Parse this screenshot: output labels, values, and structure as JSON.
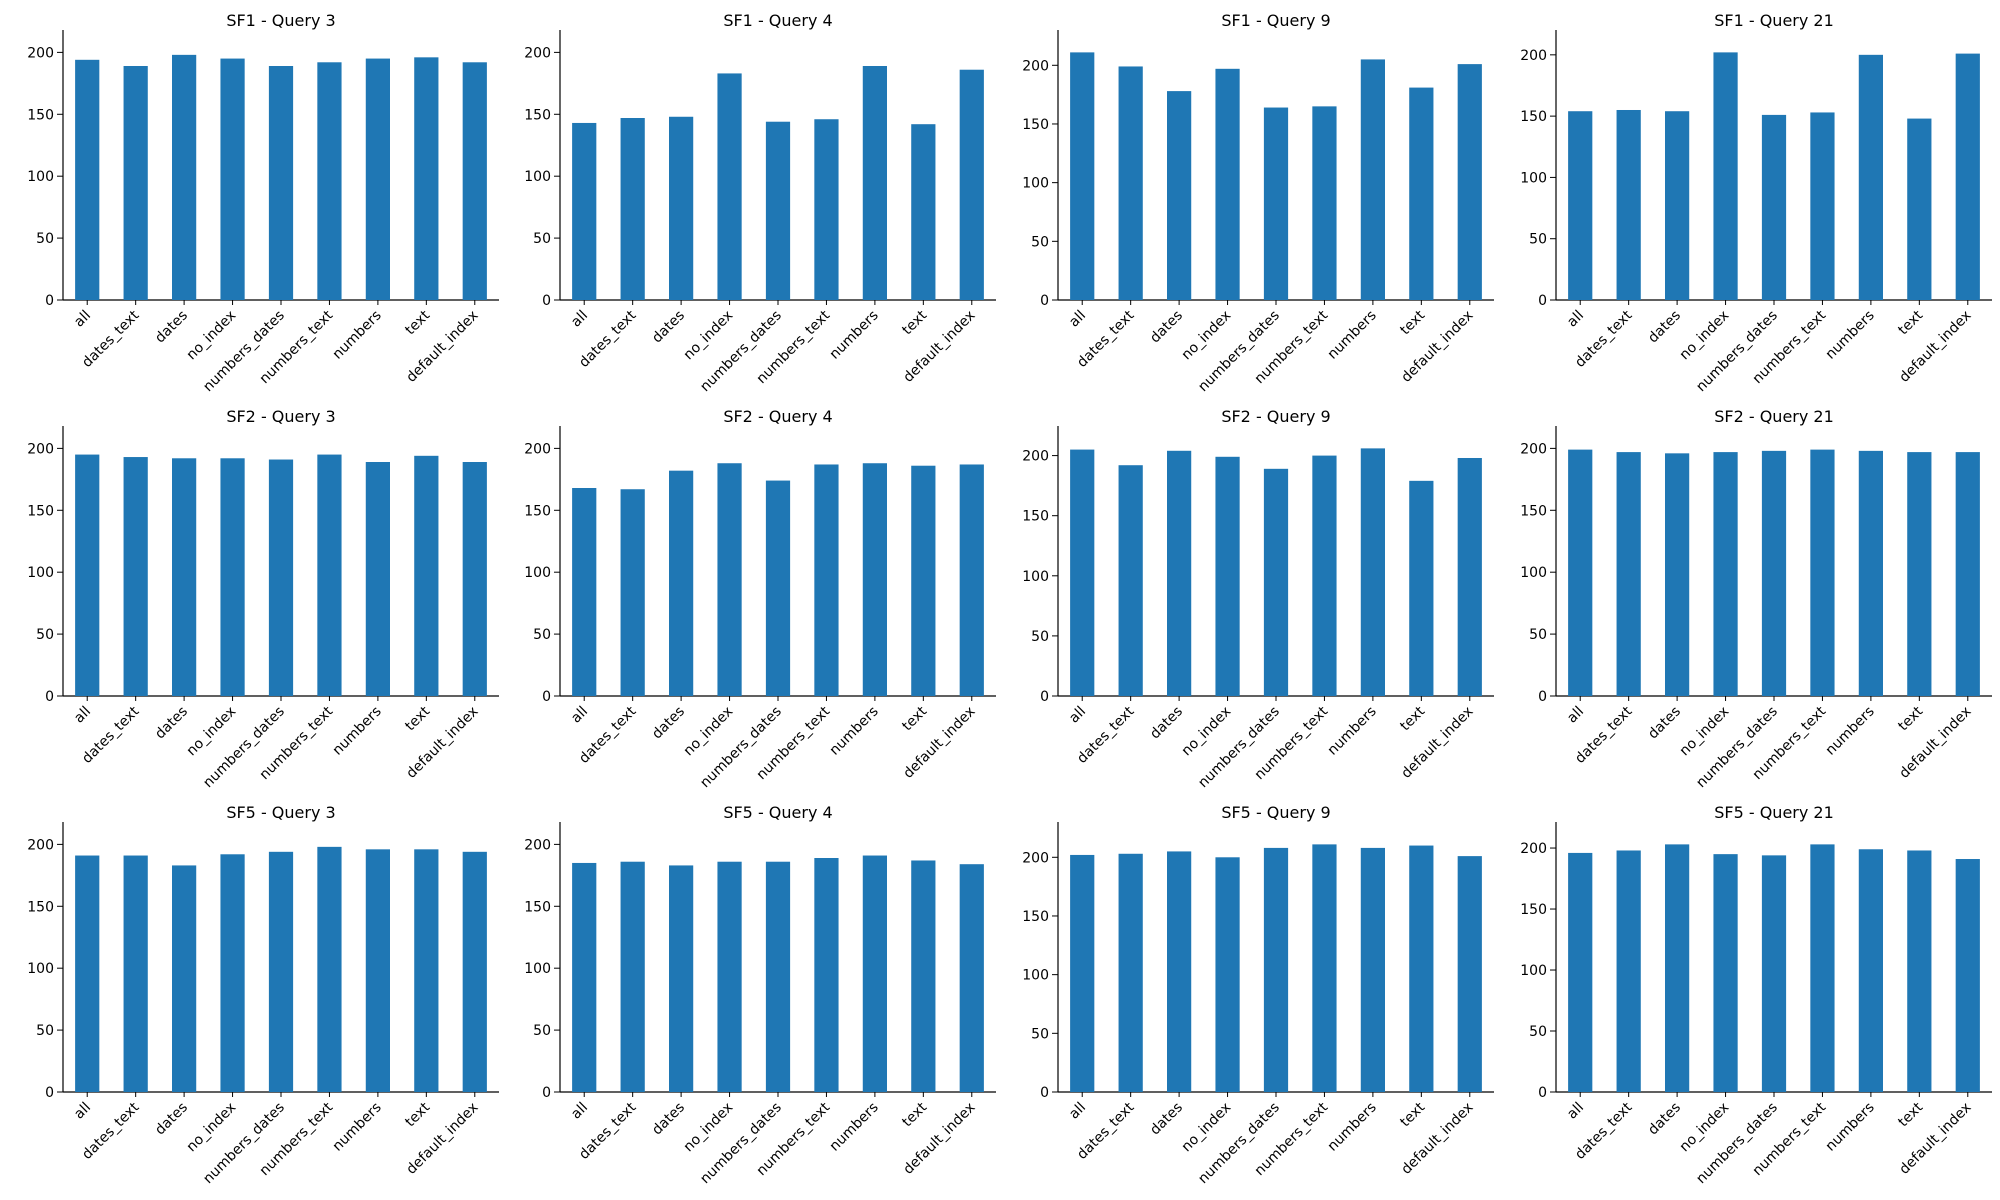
{
  "chart_data": [
    {
      "type": "bar",
      "title": "SF1 - Query 3",
      "categories": [
        "all",
        "dates_text",
        "dates",
        "no_index",
        "numbers_dates",
        "numbers_text",
        "numbers",
        "text",
        "default_index"
      ],
      "values": [
        194,
        189,
        198,
        195,
        189,
        192,
        195,
        196,
        192
      ],
      "ylim": [
        0,
        200
      ],
      "yticks": [
        0,
        50,
        100,
        150,
        200
      ],
      "color": "#1f77b4"
    },
    {
      "type": "bar",
      "title": "SF1 - Query 4",
      "categories": [
        "all",
        "dates_text",
        "dates",
        "no_index",
        "numbers_dates",
        "numbers_text",
        "numbers",
        "text",
        "default_index"
      ],
      "values": [
        143,
        147,
        148,
        183,
        144,
        146,
        189,
        142,
        186
      ],
      "ylim": [
        0,
        200
      ],
      "yticks": [
        0,
        50,
        100,
        150,
        200
      ],
      "color": "#1f77b4"
    },
    {
      "type": "bar",
      "title": "SF1 - Query 9",
      "categories": [
        "all",
        "dates_text",
        "dates",
        "no_index",
        "numbers_dates",
        "numbers_text",
        "numbers",
        "text",
        "default_index"
      ],
      "values": [
        211,
        199,
        178,
        197,
        164,
        165,
        205,
        181,
        201
      ],
      "ylim": [
        0,
        200
      ],
      "yticks": [
        0,
        50,
        100,
        150,
        200
      ],
      "color": "#1f77b4"
    },
    {
      "type": "bar",
      "title": "SF1 - Query 21",
      "categories": [
        "all",
        "dates_text",
        "dates",
        "no_index",
        "numbers_dates",
        "numbers_text",
        "numbers",
        "text",
        "default_index"
      ],
      "values": [
        154,
        155,
        154,
        202,
        151,
        153,
        200,
        148,
        201
      ],
      "ylim": [
        0,
        200
      ],
      "yticks": [
        0,
        50,
        100,
        150,
        200
      ],
      "color": "#1f77b4"
    },
    {
      "type": "bar",
      "title": "SF2 - Query 3",
      "categories": [
        "all",
        "dates_text",
        "dates",
        "no_index",
        "numbers_dates",
        "numbers_text",
        "numbers",
        "text",
        "default_index"
      ],
      "values": [
        195,
        193,
        192,
        192,
        191,
        195,
        189,
        194,
        189
      ],
      "ylim": [
        0,
        200
      ],
      "yticks": [
        0,
        50,
        100,
        150,
        200
      ],
      "color": "#1f77b4"
    },
    {
      "type": "bar",
      "title": "SF2 - Query 4",
      "categories": [
        "all",
        "dates_text",
        "dates",
        "no_index",
        "numbers_dates",
        "numbers_text",
        "numbers",
        "text",
        "default_index"
      ],
      "values": [
        168,
        167,
        182,
        188,
        174,
        187,
        188,
        186,
        187
      ],
      "ylim": [
        0,
        200
      ],
      "yticks": [
        0,
        50,
        100,
        150,
        200
      ],
      "color": "#1f77b4"
    },
    {
      "type": "bar",
      "title": "SF2 - Query 9",
      "categories": [
        "all",
        "dates_text",
        "dates",
        "no_index",
        "numbers_dates",
        "numbers_text",
        "numbers",
        "text",
        "default_index"
      ],
      "values": [
        205,
        192,
        204,
        199,
        189,
        200,
        206,
        179,
        198
      ],
      "ylim": [
        0,
        200
      ],
      "yticks": [
        0,
        50,
        100,
        150,
        200
      ],
      "color": "#1f77b4"
    },
    {
      "type": "bar",
      "title": "SF2 - Query 21",
      "categories": [
        "all",
        "dates_text",
        "dates",
        "no_index",
        "numbers_dates",
        "numbers_text",
        "numbers",
        "text",
        "default_index"
      ],
      "values": [
        199,
        197,
        196,
        197,
        198,
        199,
        198,
        197,
        197
      ],
      "ylim": [
        0,
        200
      ],
      "yticks": [
        0,
        50,
        100,
        150,
        200
      ],
      "color": "#1f77b4"
    },
    {
      "type": "bar",
      "title": "SF5 - Query 3",
      "categories": [
        "all",
        "dates_text",
        "dates",
        "no_index",
        "numbers_dates",
        "numbers_text",
        "numbers",
        "text",
        "default_index"
      ],
      "values": [
        191,
        191,
        183,
        192,
        194,
        198,
        196,
        196,
        194
      ],
      "ylim": [
        0,
        200
      ],
      "yticks": [
        0,
        50,
        100,
        150,
        200
      ],
      "color": "#1f77b4"
    },
    {
      "type": "bar",
      "title": "SF5 - Query 4",
      "categories": [
        "all",
        "dates_text",
        "dates",
        "no_index",
        "numbers_dates",
        "numbers_text",
        "numbers",
        "text",
        "default_index"
      ],
      "values": [
        185,
        186,
        183,
        186,
        186,
        189,
        191,
        187,
        184
      ],
      "ylim": [
        0,
        200
      ],
      "yticks": [
        0,
        50,
        100,
        150,
        200
      ],
      "color": "#1f77b4"
    },
    {
      "type": "bar",
      "title": "SF5 - Query 9",
      "categories": [
        "all",
        "dates_text",
        "dates",
        "no_index",
        "numbers_dates",
        "numbers_text",
        "numbers",
        "text",
        "default_index"
      ],
      "values": [
        202,
        203,
        205,
        200,
        208,
        211,
        208,
        210,
        201
      ],
      "ylim": [
        0,
        200
      ],
      "yticks": [
        0,
        50,
        100,
        150,
        200
      ],
      "color": "#1f77b4"
    },
    {
      "type": "bar",
      "title": "SF5 - Query 21",
      "categories": [
        "all",
        "dates_text",
        "dates",
        "no_index",
        "numbers_dates",
        "numbers_text",
        "numbers",
        "text",
        "default_index"
      ],
      "values": [
        196,
        198,
        203,
        195,
        194,
        203,
        199,
        198,
        191
      ],
      "ylim": [
        0,
        200
      ],
      "yticks": [
        0,
        50,
        100,
        150,
        200
      ],
      "color": "#1f77b4"
    }
  ]
}
